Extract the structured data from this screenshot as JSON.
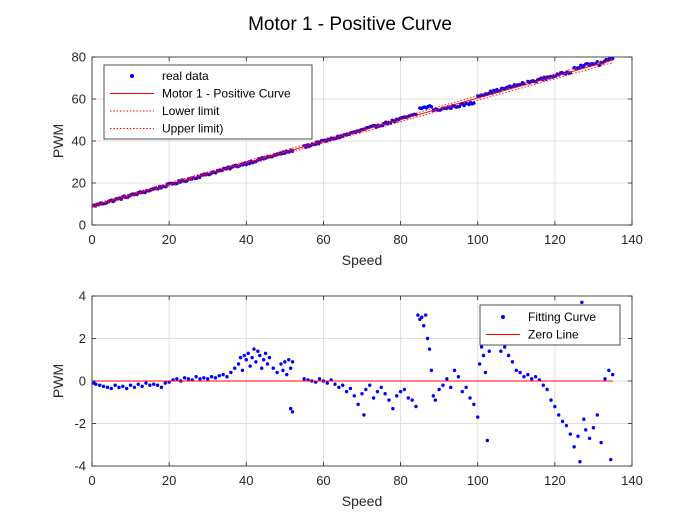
{
  "figure_title": "Motor 1 - Positive Curve",
  "colors": {
    "points": "#0000ff",
    "curve": "#ff0000",
    "limits": "#ff0000",
    "grid": "#dfdfdf",
    "axes": "#262626"
  },
  "chart_data": [
    {
      "type": "scatter",
      "title": "Motor 1 - Positive Curve",
      "xlabel": "Speed",
      "ylabel": "PWM",
      "xlim": [
        0,
        140
      ],
      "ylim": [
        0,
        80
      ],
      "xticks": [
        0,
        20,
        40,
        60,
        80,
        100,
        120,
        140
      ],
      "yticks": [
        0,
        20,
        40,
        60,
        80
      ],
      "grid": true,
      "legend_position": "top-left",
      "series": [
        {
          "name": "real data",
          "style": "points",
          "segments": [
            [
              0.5,
              9.2,
              52,
              35.5
            ],
            [
              55,
              37.2,
              84,
              52.6
            ],
            [
              85,
              55.5,
              88,
              56.6
            ],
            [
              88.5,
              54.5,
              99,
              58.2
            ],
            [
              100,
              61.5,
              112,
              67.5
            ],
            [
              113,
              67.8,
              124,
              73
            ],
            [
              125,
              75,
              131,
              77.2
            ],
            [
              131.5,
              76.5,
              135,
              79.8
            ]
          ]
        },
        {
          "name": "Motor 1 - Positive Curve",
          "style": "solid",
          "x": [
            0,
            135
          ],
          "y": [
            9.0,
            78.5
          ]
        },
        {
          "name": "Lower limit",
          "style": "dotted",
          "x": [
            0,
            135
          ],
          "y": [
            8.3,
            77.3
          ]
        },
        {
          "name": "Upper limit)",
          "style": "dotted",
          "x": [
            0,
            135
          ],
          "y": [
            9.7,
            79.7
          ]
        }
      ]
    },
    {
      "type": "scatter",
      "title": "",
      "xlabel": "Speed",
      "ylabel": "PWM",
      "xlim": [
        0,
        140
      ],
      "ylim": [
        -4,
        4
      ],
      "xticks": [
        0,
        20,
        40,
        60,
        80,
        100,
        120,
        140
      ],
      "yticks": [
        -4,
        -2,
        0,
        2,
        4
      ],
      "grid": true,
      "legend_position": "top-right",
      "series": [
        {
          "name": "Fitting Curve",
          "style": "points",
          "points": [
            [
              0.5,
              -0.1
            ],
            [
              1,
              -0.15
            ],
            [
              2,
              -0.2
            ],
            [
              3,
              -0.25
            ],
            [
              4,
              -0.3
            ],
            [
              5,
              -0.35
            ],
            [
              6,
              -0.2
            ],
            [
              7,
              -0.3
            ],
            [
              8,
              -0.25
            ],
            [
              9,
              -0.35
            ],
            [
              10,
              -0.2
            ],
            [
              11,
              -0.3
            ],
            [
              12,
              -0.15
            ],
            [
              13,
              -0.25
            ],
            [
              14,
              -0.1
            ],
            [
              15,
              -0.2
            ],
            [
              16,
              -0.15
            ],
            [
              17,
              -0.2
            ],
            [
              18,
              -0.3
            ],
            [
              19,
              -0.1
            ],
            [
              20,
              -0.05
            ],
            [
              21,
              0.05
            ],
            [
              22,
              0.1
            ],
            [
              23,
              0.0
            ],
            [
              24,
              0.15
            ],
            [
              25,
              0.1
            ],
            [
              26,
              0.05
            ],
            [
              27,
              0.2
            ],
            [
              28,
              0.1
            ],
            [
              29,
              0.15
            ],
            [
              30,
              0.1
            ],
            [
              31,
              0.2
            ],
            [
              32,
              0.15
            ],
            [
              33,
              0.25
            ],
            [
              34,
              0.3
            ],
            [
              35,
              0.2
            ],
            [
              36,
              0.4
            ],
            [
              37,
              0.6
            ],
            [
              38,
              0.8
            ],
            [
              38.5,
              1.1
            ],
            [
              39,
              0.5
            ],
            [
              39.5,
              1.2
            ],
            [
              40,
              1.0
            ],
            [
              40.5,
              1.3
            ],
            [
              41,
              0.7
            ],
            [
              41.5,
              1.1
            ],
            [
              42,
              1.5
            ],
            [
              42.5,
              0.9
            ],
            [
              43,
              1.4
            ],
            [
              43.5,
              1.2
            ],
            [
              44,
              0.6
            ],
            [
              44.5,
              1.0
            ],
            [
              45,
              1.3
            ],
            [
              45.5,
              0.8
            ],
            [
              46,
              1.1
            ],
            [
              47,
              0.6
            ],
            [
              48,
              0.4
            ],
            [
              49,
              0.8
            ],
            [
              49.5,
              0.5
            ],
            [
              50,
              0.9
            ],
            [
              50.5,
              0.3
            ],
            [
              51,
              1.0
            ],
            [
              51.5,
              0.6
            ],
            [
              52,
              0.9
            ],
            [
              51.5,
              -1.3
            ],
            [
              52,
              -1.45
            ],
            [
              55,
              0.1
            ],
            [
              56,
              0.05
            ],
            [
              57,
              0.0
            ],
            [
              58,
              -0.05
            ],
            [
              59,
              0.1
            ],
            [
              60,
              0.0
            ],
            [
              61,
              -0.1
            ],
            [
              62,
              0.05
            ],
            [
              63,
              -0.15
            ],
            [
              64,
              -0.3
            ],
            [
              65,
              -0.2
            ],
            [
              66,
              -0.5
            ],
            [
              67,
              -0.35
            ],
            [
              68,
              -0.7
            ],
            [
              69,
              -1.1
            ],
            [
              70,
              -0.6
            ],
            [
              70.5,
              -1.6
            ],
            [
              71,
              -0.4
            ],
            [
              72,
              -0.2
            ],
            [
              73,
              -0.8
            ],
            [
              74,
              -0.5
            ],
            [
              75,
              -0.3
            ],
            [
              76,
              -0.6
            ],
            [
              77,
              -0.9
            ],
            [
              78,
              -1.3
            ],
            [
              79,
              -0.7
            ],
            [
              80,
              -0.5
            ],
            [
              81,
              -0.4
            ],
            [
              82,
              -0.8
            ],
            [
              83,
              -0.9
            ],
            [
              84,
              -1.2
            ],
            [
              84.5,
              3.1
            ],
            [
              85,
              2.9
            ],
            [
              85.5,
              3.0
            ],
            [
              86,
              2.6
            ],
            [
              86.5,
              3.1
            ],
            [
              87,
              2.0
            ],
            [
              87.5,
              1.5
            ],
            [
              88,
              0.5
            ],
            [
              88.5,
              -0.7
            ],
            [
              89,
              -0.9
            ],
            [
              90,
              -0.4
            ],
            [
              91,
              -0.2
            ],
            [
              92,
              0.1
            ],
            [
              93,
              -0.3
            ],
            [
              94,
              0.5
            ],
            [
              95,
              0.2
            ],
            [
              96,
              -0.5
            ],
            [
              97,
              -0.3
            ],
            [
              98,
              -0.8
            ],
            [
              99,
              -1.1
            ],
            [
              100,
              -1.7
            ],
            [
              100.5,
              0.8
            ],
            [
              101,
              1.6
            ],
            [
              101.5,
              1.2
            ],
            [
              102,
              0.4
            ],
            [
              102.5,
              -2.8
            ],
            [
              103,
              1.4
            ],
            [
              104,
              2.1
            ],
            [
              105,
              1.8
            ],
            [
              106,
              1.4
            ],
            [
              107,
              1.6
            ],
            [
              108,
              1.2
            ],
            [
              109,
              0.9
            ],
            [
              110,
              0.5
            ],
            [
              111,
              0.4
            ],
            [
              112,
              0.2
            ],
            [
              113,
              0.3
            ],
            [
              114,
              0.1
            ],
            [
              115,
              0.2
            ],
            [
              116,
              0.05
            ],
            [
              117,
              -0.2
            ],
            [
              118,
              -0.4
            ],
            [
              119,
              -0.9
            ],
            [
              120,
              -1.2
            ],
            [
              121,
              -1.6
            ],
            [
              122,
              -1.9
            ],
            [
              123,
              -2.1
            ],
            [
              124,
              -2.5
            ],
            [
              125,
              -3.1
            ],
            [
              126,
              -2.6
            ],
            [
              126.5,
              -3.8
            ],
            [
              127,
              3.7
            ],
            [
              127.5,
              -1.8
            ],
            [
              128,
              -2.3
            ],
            [
              129,
              -2.7
            ],
            [
              130,
              -2.2
            ],
            [
              131,
              -1.6
            ],
            [
              132,
              -2.9
            ],
            [
              133,
              0.1
            ],
            [
              134,
              0.5
            ],
            [
              134.5,
              -3.7
            ],
            [
              135,
              0.3
            ]
          ]
        },
        {
          "name": "Zero Line",
          "style": "solid",
          "x": [
            0,
            135
          ],
          "y": [
            0,
            0
          ]
        }
      ]
    }
  ]
}
